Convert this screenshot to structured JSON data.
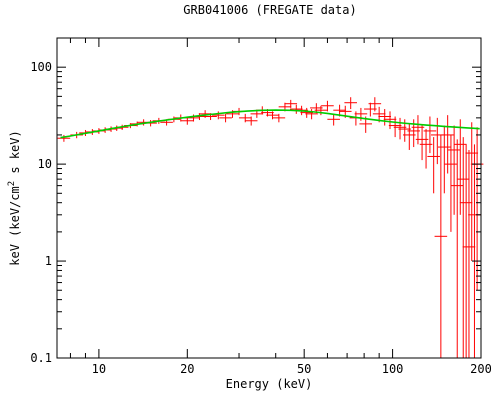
{
  "chart_data": {
    "type": "scatter",
    "title": "GRB041006 (FREGATE data)",
    "xlabel": "Energy (keV)",
    "ylabel": "keV (keV/cm² s keV)",
    "ylabel_parts": [
      "keV (keV/cm",
      "2",
      " s keV)"
    ],
    "x_scale": "log",
    "y_scale": "log",
    "xlim": [
      7.2,
      200
    ],
    "ylim": [
      0.1,
      200
    ],
    "x_ticks": [
      10,
      20,
      50,
      100,
      200
    ],
    "x_tick_labels": [
      "10",
      "20",
      "50",
      "100",
      "200"
    ],
    "y_ticks": [
      0.1,
      1,
      10,
      100
    ],
    "y_tick_labels": [
      "0.1",
      "1",
      "10",
      "100"
    ],
    "colors": {
      "data": "#ff0000",
      "model": "#00cc00",
      "axes": "#000000"
    },
    "grid": false,
    "series": [
      {
        "role": "data",
        "x": [
          7.6,
          8.4,
          9.0,
          9.5,
          10.0,
          10.5,
          11.0,
          11.5,
          12.0,
          12.8,
          13.5,
          14.2,
          15.0,
          16.0,
          17.0,
          18.0,
          19.0,
          20.0,
          21.0,
          22.0,
          23.0,
          24.0,
          25.5,
          27.0,
          28.5,
          30.0,
          31.5,
          33.0,
          34.5,
          36.0,
          37.5,
          39.0,
          41.0,
          43.0,
          45.0,
          47.0,
          49.0,
          51.0,
          53.0,
          55.0,
          57.0,
          60.0,
          63.0,
          66.0,
          69.0,
          72.0,
          75.0,
          78.0,
          81.0,
          84.0,
          87.0,
          90.0,
          94.0,
          98.0,
          102.0,
          106.0,
          110.0,
          114.0,
          118.0,
          122.0,
          126.0,
          130.0,
          134.0,
          138.0,
          142.0,
          146.0,
          150.0,
          154.0,
          158.0,
          162.0,
          166.0,
          170.0,
          174.0,
          178.0,
          182.0,
          186.0,
          190.0,
          194.0
        ],
        "y": [
          18.5,
          20,
          21,
          21.5,
          22,
          22.5,
          23,
          23.5,
          24,
          25,
          26,
          27,
          26.5,
          28,
          27,
          29,
          30,
          28,
          30,
          31,
          33,
          31,
          32,
          30,
          33,
          35,
          30,
          28,
          33,
          36,
          34,
          32,
          30,
          39,
          42,
          37,
          36,
          34,
          33,
          38,
          36,
          40,
          29,
          36,
          35,
          43,
          30,
          33,
          26,
          37,
          42,
          33,
          31,
          29,
          25,
          24,
          23,
          20,
          22,
          24,
          18,
          16,
          22,
          12,
          20,
          1.8,
          15,
          20,
          10,
          14,
          6,
          16,
          7,
          4,
          1.4,
          13,
          3,
          10
        ],
        "y_lo": [
          17,
          18.5,
          19.5,
          20,
          20.5,
          21,
          21.5,
          22,
          22.5,
          23.5,
          24.5,
          25,
          24.5,
          26,
          25,
          27,
          27.5,
          25.5,
          27.5,
          28.5,
          30,
          28.5,
          29,
          27,
          30,
          32,
          27,
          25,
          30,
          32.5,
          31,
          29,
          27,
          35,
          38,
          33,
          32,
          30,
          29,
          33.5,
          32,
          35,
          25,
          31,
          30,
          37,
          25,
          28,
          21,
          31,
          35,
          27,
          25,
          23,
          19,
          18,
          17,
          14,
          15,
          16,
          11,
          9,
          13,
          5,
          10,
          0.1,
          5,
          8,
          2,
          3,
          0.1,
          3,
          0.1,
          0.1,
          0.1,
          1,
          0.1,
          0.5
        ],
        "y_hi": [
          20,
          21.5,
          22.5,
          23,
          23.5,
          24,
          24.5,
          25,
          25.5,
          26.5,
          27.5,
          29,
          28.5,
          30,
          29,
          31,
          32.5,
          30.5,
          32.5,
          33.5,
          36,
          33.5,
          35,
          33,
          36,
          38,
          33,
          31,
          36,
          39.5,
          37,
          35,
          33,
          43,
          46,
          41,
          40,
          38,
          37,
          42.5,
          40,
          45,
          33,
          41,
          40,
          49,
          35,
          38,
          31,
          43,
          49,
          39,
          37,
          35,
          31,
          30,
          29,
          26,
          29,
          32,
          25,
          23,
          31,
          19,
          30,
          20,
          25,
          32,
          20,
          25,
          18,
          29,
          19,
          16,
          14,
          27,
          16,
          24
        ]
      },
      {
        "role": "model",
        "x": [
          7.4,
          8,
          9,
          10,
          11,
          12,
          13,
          14,
          15,
          16,
          18,
          20,
          22,
          25,
          28,
          32,
          36,
          40,
          45,
          50,
          55,
          60,
          70,
          80,
          90,
          100,
          110,
          120,
          130,
          140,
          150,
          160,
          170,
          180,
          190,
          198
        ],
        "y": [
          18.8,
          19.5,
          20.8,
          22,
          23.2,
          24.3,
          25.3,
          26.2,
          27,
          27.8,
          29.2,
          30.5,
          31.6,
          33,
          34.2,
          35.3,
          35.9,
          36.1,
          35.9,
          35.3,
          34.4,
          33.3,
          31.2,
          29.5,
          28.2,
          27.2,
          26.4,
          25.8,
          25.3,
          24.9,
          24.5,
          24.2,
          23.9,
          23.6,
          23.4,
          23.2
        ]
      }
    ]
  }
}
